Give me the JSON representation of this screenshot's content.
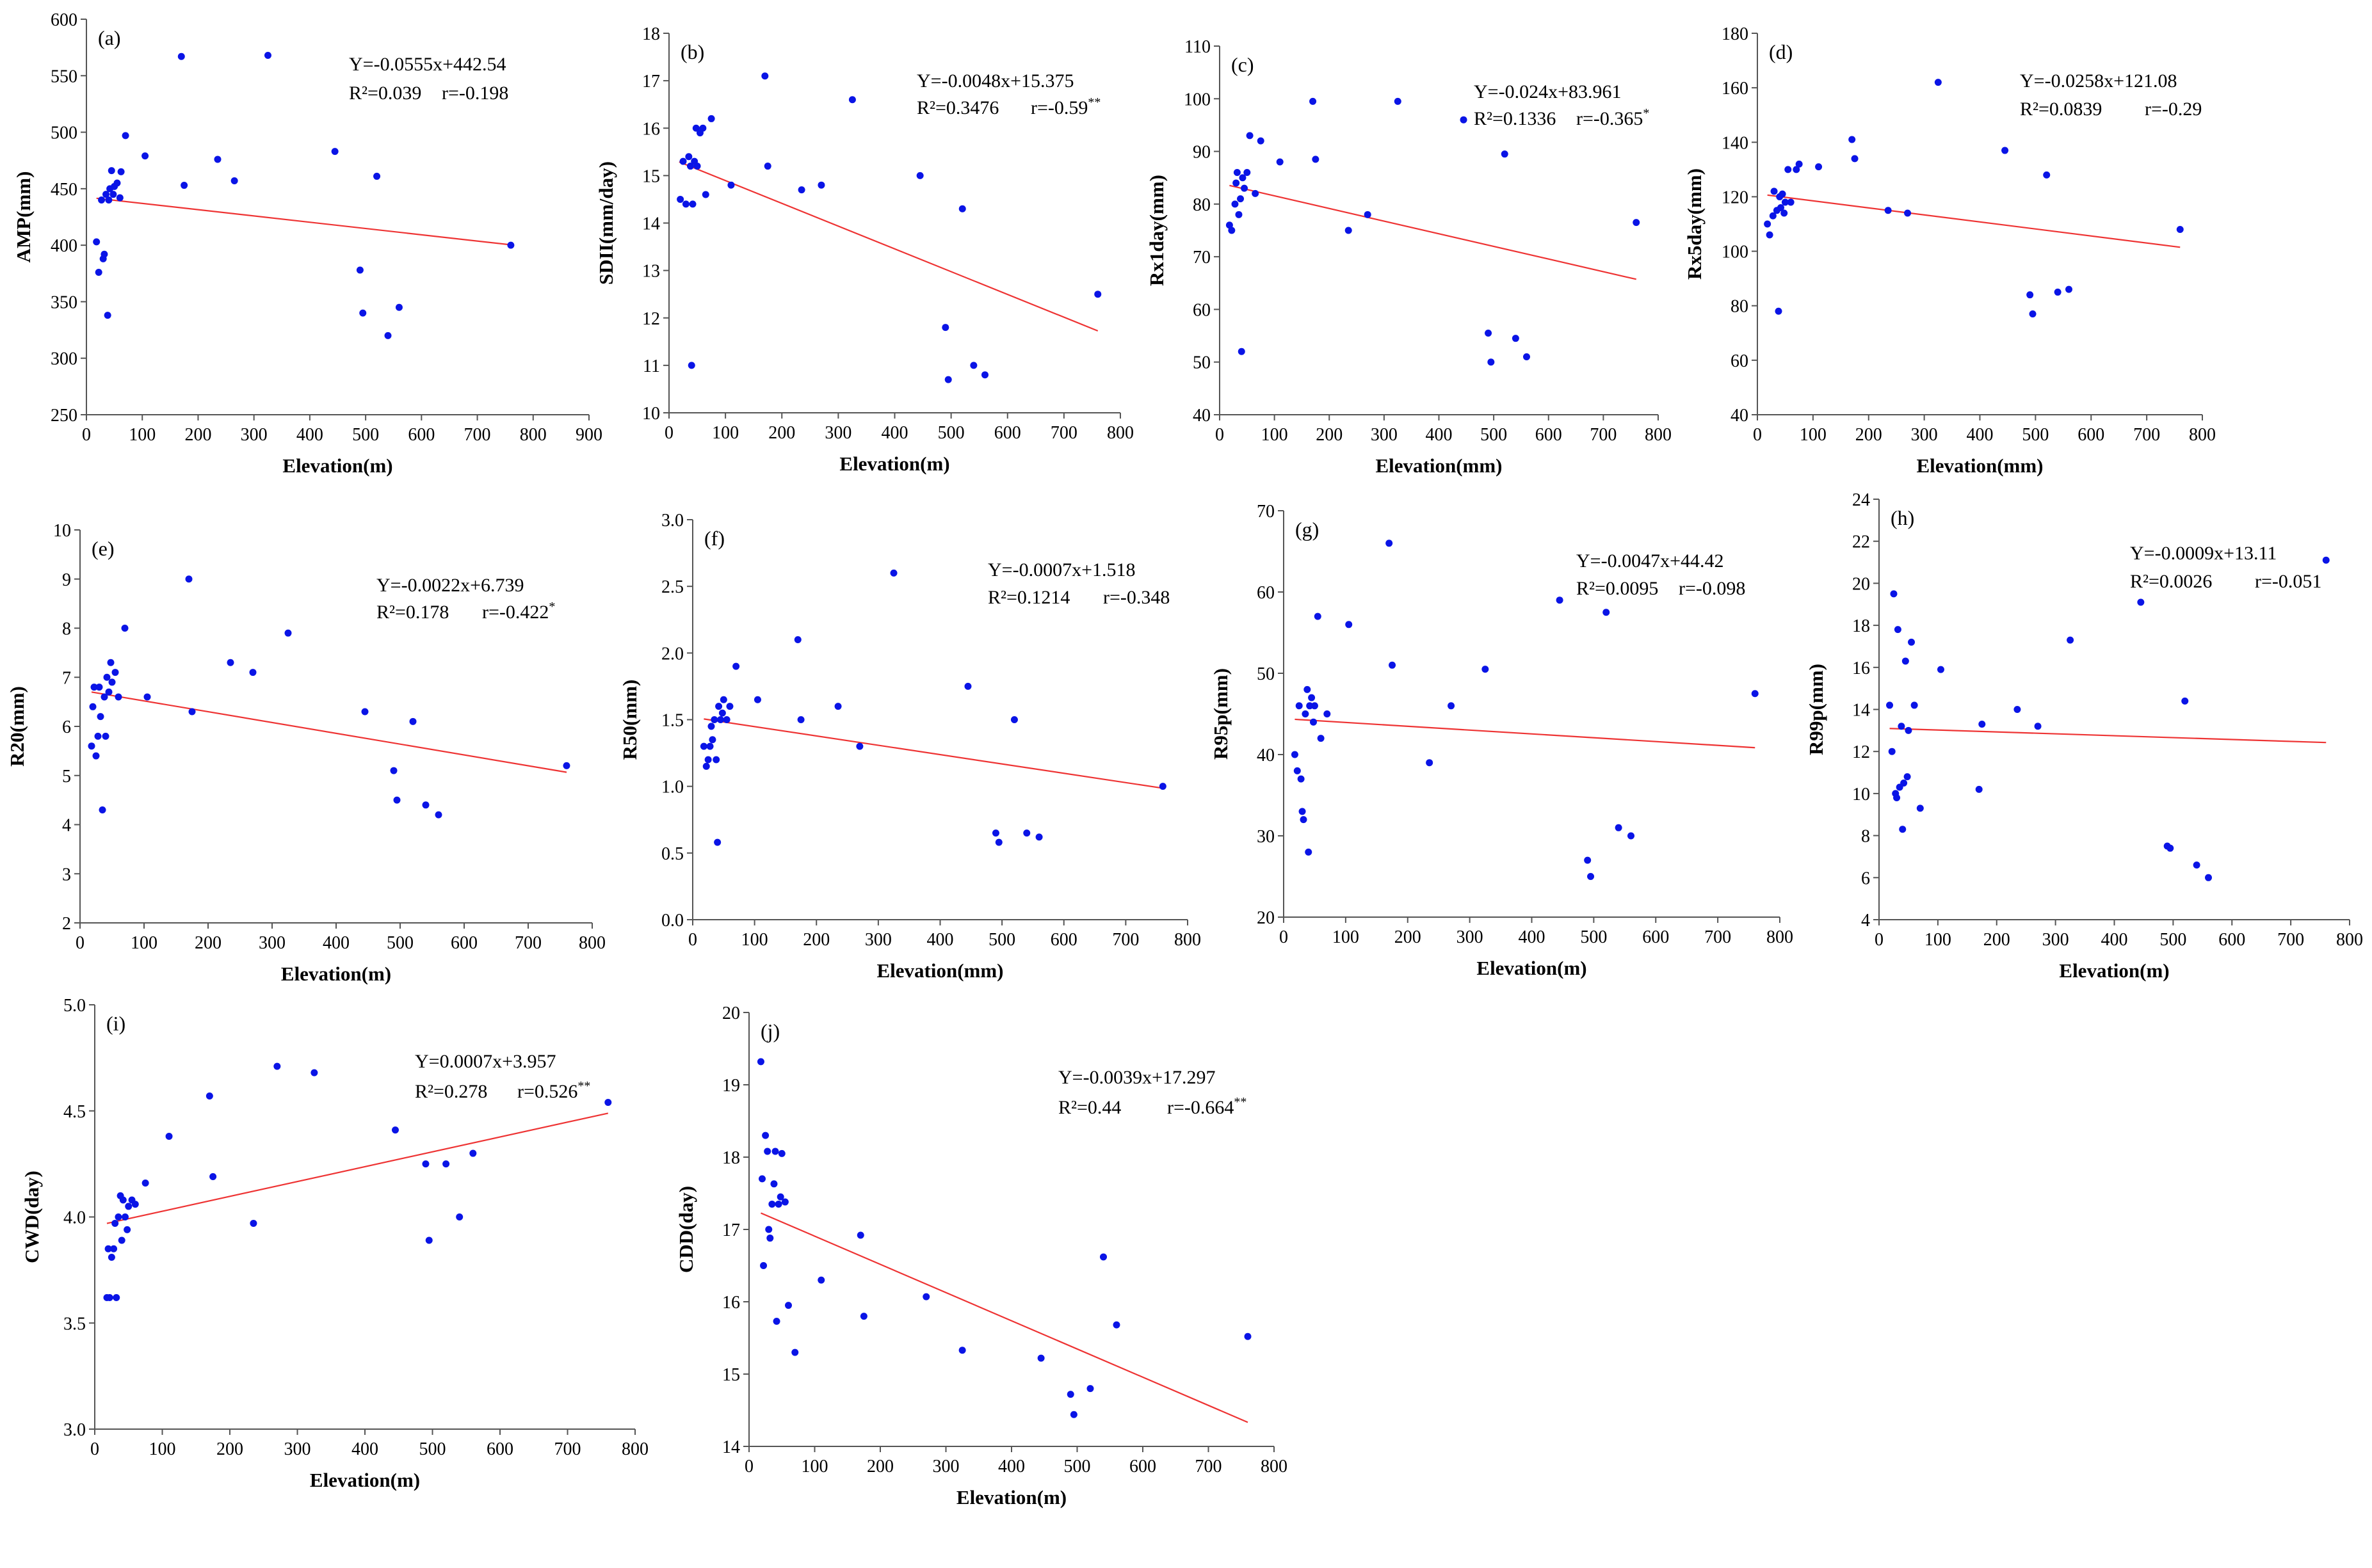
{
  "chart_data": [
    {
      "panel": "(a)",
      "type": "scatter",
      "xlabel": "Elevation(m)",
      "ylabel": "AMP(mm)",
      "xlim": [
        0,
        900
      ],
      "ylim": [
        250,
        600
      ],
      "xticks": [
        "0",
        "100",
        "200",
        "300",
        "400",
        "500",
        "600",
        "700",
        "800",
        "900"
      ],
      "yticks": [
        "250",
        "300",
        "350",
        "400",
        "450",
        "500",
        "550",
        "600"
      ],
      "x": [
        18,
        22,
        27,
        30,
        32,
        35,
        38,
        40,
        42,
        45,
        48,
        50,
        55,
        60,
        62,
        70,
        105,
        170,
        175,
        235,
        265,
        325,
        445,
        490,
        495,
        520,
        540,
        560,
        760
      ],
      "y": [
        403,
        376,
        440,
        388,
        392,
        445,
        338,
        440,
        450,
        466,
        445,
        452,
        455,
        442,
        465,
        497,
        479,
        567,
        453,
        476,
        457,
        568,
        483,
        378,
        340,
        461,
        320,
        345,
        400
      ],
      "trend": {
        "slope": -0.0555,
        "intercept": 442.54,
        "x_range": [
          18,
          760
        ]
      },
      "equation": "Y=-0.0555x+442.54",
      "r2": "R²=0.039",
      "r": "r=-0.198",
      "r_marker": ""
    },
    {
      "panel": "(b)",
      "type": "scatter",
      "xlabel": "Elevation(m)",
      "ylabel": "SDII(mm/day)",
      "xlim": [
        0,
        800
      ],
      "ylim": [
        10,
        18
      ],
      "xticks": [
        "0",
        "100",
        "200",
        "300",
        "400",
        "500",
        "600",
        "700",
        "800"
      ],
      "yticks": [
        "10",
        "11",
        "12",
        "13",
        "14",
        "15",
        "16",
        "17",
        "18"
      ],
      "x": [
        20,
        25,
        30,
        35,
        38,
        40,
        42,
        45,
        48,
        50,
        55,
        60,
        65,
        75,
        110,
        170,
        175,
        235,
        270,
        325,
        445,
        490,
        495,
        520,
        540,
        560,
        760
      ],
      "y": [
        14.5,
        15.3,
        14.4,
        15.4,
        15.2,
        11.0,
        14.4,
        15.3,
        16.0,
        15.2,
        15.9,
        16.0,
        14.6,
        16.2,
        14.8,
        17.1,
        15.2,
        14.7,
        14.8,
        16.6,
        15.0,
        11.8,
        10.7,
        14.3,
        11.0,
        10.8,
        12.5
      ],
      "trend": {
        "slope": -0.0048,
        "intercept": 15.375,
        "x_range": [
          18,
          760
        ]
      },
      "equation": "Y=-0.0048x+15.375",
      "r2": "R²=0.3476",
      "r": "r=-0.59",
      "r_marker": "**"
    },
    {
      "panel": "(c)",
      "type": "scatter",
      "xlabel": "Elevation(mm)",
      "ylabel": "Rx1day(mm)",
      "xlim": [
        0,
        800
      ],
      "ylim": [
        40,
        110
      ],
      "xticks": [
        "0",
        "100",
        "200",
        "300",
        "400",
        "500",
        "600",
        "700",
        "800"
      ],
      "yticks": [
        "40",
        "50",
        "60",
        "70",
        "80",
        "90",
        "100",
        "110"
      ],
      "x": [
        18,
        22,
        28,
        30,
        32,
        35,
        38,
        40,
        42,
        45,
        50,
        55,
        65,
        75,
        110,
        170,
        175,
        235,
        270,
        325,
        445,
        490,
        495,
        520,
        540,
        560,
        760
      ],
      "y": [
        76,
        75,
        80,
        84,
        86,
        78,
        81,
        52,
        85,
        83,
        86,
        93,
        82,
        92,
        88,
        99.5,
        88.5,
        75,
        78,
        99.5,
        96,
        55.5,
        50,
        89.5,
        54.5,
        51,
        76.5
      ],
      "trend": {
        "slope": -0.024,
        "intercept": 83.961,
        "x_range": [
          18,
          760
        ]
      },
      "equation": "Y=-0.024x+83.961",
      "r2": "R²=0.1336",
      "r": "r=-0.365",
      "r_marker": "*"
    },
    {
      "panel": "(d)",
      "type": "scatter",
      "xlabel": "Elevation(mm)",
      "ylabel": "Rx5day(mm)",
      "xlim": [
        0,
        800
      ],
      "ylim": [
        40,
        180
      ],
      "xticks": [
        "0",
        "100",
        "200",
        "300",
        "400",
        "500",
        "600",
        "700",
        "800"
      ],
      "yticks": [
        "40",
        "60",
        "80",
        "100",
        "120",
        "140",
        "160",
        "180"
      ],
      "x": [
        18,
        22,
        28,
        30,
        35,
        38,
        40,
        42,
        45,
        48,
        50,
        55,
        60,
        70,
        75,
        110,
        170,
        175,
        235,
        270,
        325,
        445,
        490,
        495,
        520,
        540,
        560,
        760
      ],
      "y": [
        110,
        106,
        113,
        122,
        115,
        78,
        120,
        116,
        121,
        114,
        118,
        130,
        118,
        130,
        132,
        131,
        141,
        134,
        115,
        114,
        162,
        137,
        84,
        77,
        128,
        85,
        86,
        108
      ],
      "trend": {
        "slope": -0.0258,
        "intercept": 121.08,
        "x_range": [
          18,
          760
        ]
      },
      "equation": "Y=-0.0258x+121.08",
      "r2": "R²=0.0839",
      "r": "r=-0.29",
      "r_marker": ""
    },
    {
      "panel": "(e)",
      "type": "scatter",
      "xlabel": "Elevation(m)",
      "ylabel": "R20(mm)",
      "xlim": [
        0,
        800
      ],
      "ylim": [
        2,
        10
      ],
      "xticks": [
        "0",
        "100",
        "200",
        "300",
        "400",
        "500",
        "600",
        "700",
        "800"
      ],
      "yticks": [
        "2",
        "3",
        "4",
        "5",
        "6",
        "7",
        "8",
        "9",
        "10"
      ],
      "x": [
        18,
        20,
        22,
        25,
        28,
        30,
        32,
        35,
        38,
        40,
        42,
        45,
        48,
        50,
        55,
        60,
        70,
        105,
        170,
        175,
        235,
        270,
        325,
        445,
        490,
        495,
        520,
        540,
        560,
        760
      ],
      "y": [
        5.6,
        6.4,
        6.8,
        5.4,
        5.8,
        6.8,
        6.2,
        4.3,
        6.6,
        5.8,
        7.0,
        6.7,
        7.3,
        6.9,
        7.1,
        6.6,
        8.0,
        6.6,
        9.0,
        6.3,
        7.3,
        7.1,
        7.9,
        6.3,
        5.1,
        4.5,
        6.1,
        4.4,
        4.2,
        5.2
      ],
      "trend": {
        "slope": -0.0022,
        "intercept": 6.739,
        "x_range": [
          18,
          760
        ]
      },
      "equation": "Y=-0.0022x+6.739",
      "r2": "R²=0.178",
      "r": "r=-0.422",
      "r_marker": "*"
    },
    {
      "panel": "(f)",
      "type": "scatter",
      "xlabel": "Elevation(mm)",
      "ylabel": "R50(mm)",
      "xlim": [
        0,
        800
      ],
      "ylim": [
        0.0,
        3.0
      ],
      "xticks": [
        "0",
        "100",
        "200",
        "300",
        "400",
        "500",
        "600",
        "700",
        "800"
      ],
      "yticks": [
        "0.0",
        "0.5",
        "1.0",
        "1.5",
        "2.0",
        "2.5",
        "3.0"
      ],
      "x": [
        18,
        22,
        25,
        28,
        30,
        32,
        35,
        38,
        40,
        42,
        45,
        48,
        50,
        55,
        60,
        70,
        105,
        170,
        175,
        235,
        270,
        325,
        445,
        490,
        495,
        520,
        540,
        560,
        760
      ],
      "y": [
        1.3,
        1.15,
        1.2,
        1.3,
        1.45,
        1.35,
        1.5,
        1.2,
        0.58,
        1.6,
        1.5,
        1.55,
        1.65,
        1.5,
        1.6,
        1.9,
        1.65,
        2.1,
        1.5,
        1.6,
        1.3,
        2.6,
        1.75,
        0.65,
        0.58,
        1.5,
        0.65,
        0.62,
        1.0
      ],
      "trend": {
        "slope": -0.0007,
        "intercept": 1.518,
        "x_range": [
          18,
          760
        ]
      },
      "equation": "Y=-0.0007x+1.518",
      "r2": "R²=0.1214",
      "r": "r=-0.348",
      "r_marker": ""
    },
    {
      "panel": "(g)",
      "type": "scatter",
      "xlabel": "Elevation(m)",
      "ylabel": "R95p(mm)",
      "xlim": [
        0,
        800
      ],
      "ylim": [
        20,
        70
      ],
      "xticks": [
        "0",
        "100",
        "200",
        "300",
        "400",
        "500",
        "600",
        "700",
        "800"
      ],
      "yticks": [
        "20",
        "30",
        "40",
        "50",
        "60",
        "70"
      ],
      "x": [
        18,
        22,
        25,
        28,
        30,
        32,
        35,
        38,
        40,
        42,
        45,
        48,
        50,
        55,
        60,
        70,
        105,
        170,
        175,
        235,
        270,
        325,
        445,
        490,
        495,
        520,
        540,
        560,
        760
      ],
      "y": [
        40,
        38,
        46,
        37,
        33,
        32,
        45,
        48,
        28,
        46,
        47,
        44,
        46,
        57,
        42,
        45,
        56,
        66,
        51,
        39,
        46,
        50.5,
        59,
        27,
        25,
        57.5,
        31,
        30,
        47.5
      ],
      "trend": {
        "slope": -0.0047,
        "intercept": 44.42,
        "x_range": [
          18,
          760
        ]
      },
      "equation": "Y=-0.0047x+44.42",
      "r2": "R²=0.0095",
      "r": "r=-0.098",
      "r_marker": ""
    },
    {
      "panel": "(h)",
      "type": "scatter",
      "xlabel": "Elevation(m)",
      "ylabel": "R99p(mm)",
      "xlim": [
        0,
        800
      ],
      "ylim": [
        4,
        24
      ],
      "xticks": [
        "0",
        "100",
        "200",
        "300",
        "400",
        "500",
        "600",
        "700",
        "800"
      ],
      "yticks": [
        "4",
        "6",
        "8",
        "10",
        "12",
        "14",
        "16",
        "18",
        "20",
        "22",
        "24"
      ],
      "x": [
        18,
        22,
        25,
        28,
        30,
        32,
        35,
        38,
        40,
        42,
        45,
        48,
        50,
        55,
        60,
        70,
        105,
        170,
        175,
        235,
        270,
        325,
        445,
        490,
        495,
        520,
        540,
        560,
        760
      ],
      "y": [
        14.2,
        12.0,
        19.5,
        10.0,
        9.8,
        17.8,
        10.3,
        13.2,
        8.3,
        10.5,
        16.3,
        10.8,
        13.0,
        17.2,
        14.2,
        9.3,
        15.9,
        10.2,
        13.3,
        14.0,
        13.2,
        17.3,
        19.1,
        7.5,
        7.4,
        14.4,
        6.6,
        6.0,
        21.1
      ],
      "trend": {
        "slope": -0.0009,
        "intercept": 13.11,
        "x_range": [
          18,
          760
        ]
      },
      "equation": "Y=-0.0009x+13.11",
      "r2": "R²=0.0026",
      "r": "r=-0.051",
      "r_marker": ""
    },
    {
      "panel": "(i)",
      "type": "scatter",
      "xlabel": "Elevation(m)",
      "ylabel": "CWD(day)",
      "xlim": [
        0,
        800
      ],
      "ylim": [
        3.0,
        5.0
      ],
      "xticks": [
        "0",
        "100",
        "200",
        "300",
        "400",
        "500",
        "600",
        "700",
        "800"
      ],
      "yticks": [
        "3.0",
        "3.5",
        "4.0",
        "4.5",
        "5.0"
      ],
      "x": [
        18,
        20,
        22,
        25,
        28,
        30,
        32,
        35,
        38,
        40,
        42,
        45,
        48,
        50,
        55,
        60,
        75,
        110,
        170,
        175,
        235,
        270,
        325,
        445,
        490,
        495,
        520,
        540,
        560,
        760
      ],
      "y": [
        3.62,
        3.85,
        3.62,
        3.81,
        3.85,
        3.97,
        3.62,
        4.0,
        4.1,
        3.89,
        4.08,
        4.0,
        3.94,
        4.05,
        4.08,
        4.06,
        4.16,
        4.38,
        4.57,
        4.19,
        3.97,
        4.71,
        4.68,
        4.41,
        4.25,
        3.89,
        4.25,
        4.0,
        4.3,
        4.54
      ],
      "trend": {
        "slope": 0.0007,
        "intercept": 3.957,
        "x_range": [
          18,
          760
        ]
      },
      "equation": "Y=0.0007x+3.957",
      "r2": "R²=0.278",
      "r": "r=0.526",
      "r_marker": "**"
    },
    {
      "panel": "(j)",
      "type": "scatter",
      "xlabel": "Elevation(m)",
      "ylabel": "CDD(day)",
      "xlim": [
        0,
        800
      ],
      "ylim": [
        14,
        20
      ],
      "xticks": [
        "0",
        "100",
        "200",
        "300",
        "400",
        "500",
        "600",
        "700",
        "800"
      ],
      "yticks": [
        "14",
        "15",
        "16",
        "17",
        "18",
        "19",
        "20"
      ],
      "x": [
        18,
        20,
        22,
        25,
        28,
        30,
        32,
        35,
        38,
        40,
        42,
        45,
        48,
        50,
        55,
        60,
        70,
        110,
        170,
        175,
        270,
        325,
        445,
        490,
        495,
        520,
        540,
        560,
        760
      ],
      "y": [
        19.32,
        17.7,
        16.5,
        18.3,
        18.08,
        17.0,
        16.88,
        17.35,
        17.63,
        18.08,
        15.73,
        17.35,
        17.45,
        18.05,
        17.38,
        15.95,
        15.3,
        16.3,
        16.92,
        15.8,
        16.07,
        15.33,
        15.22,
        14.72,
        14.44,
        14.8,
        16.62,
        15.68,
        15.52
      ],
      "trend": {
        "slope": -0.0039,
        "intercept": 17.297,
        "x_range": [
          18,
          760
        ]
      },
      "equation": "Y=-0.0039x+17.297",
      "r2": "R²=0.44",
      "r": "r=-0.664",
      "r_marker": "**"
    }
  ],
  "colors": {
    "points": "#0a14e6",
    "trend": "#ee3333",
    "axis": "#555555",
    "text": "#000000"
  }
}
